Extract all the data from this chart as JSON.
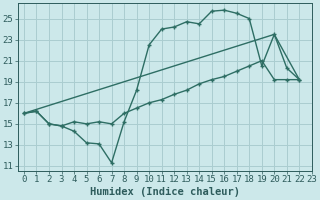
{
  "line1_x": [
    0,
    1,
    2,
    3,
    4,
    5,
    6,
    7,
    8,
    9,
    10,
    11,
    12,
    13,
    14,
    15,
    16,
    17,
    18,
    19,
    20,
    21,
    22
  ],
  "line1_y": [
    16.0,
    16.2,
    15.0,
    14.8,
    14.3,
    13.2,
    13.1,
    11.3,
    15.2,
    18.2,
    22.5,
    24.0,
    24.2,
    24.7,
    24.5,
    25.7,
    25.8,
    25.5,
    25.0,
    20.5,
    23.5,
    20.3,
    19.2
  ],
  "line2_x": [
    0,
    20,
    22
  ],
  "line2_y": [
    16.0,
    23.5,
    19.2
  ],
  "line3_x": [
    0,
    1,
    2,
    3,
    4,
    5,
    6,
    7,
    8,
    9,
    10,
    11,
    12,
    13,
    14,
    15,
    16,
    17,
    18,
    19,
    20,
    21,
    22
  ],
  "line3_y": [
    16.0,
    16.2,
    15.0,
    14.8,
    15.2,
    15.0,
    15.2,
    15.0,
    16.0,
    16.5,
    17.0,
    17.3,
    17.8,
    18.2,
    18.8,
    19.2,
    19.5,
    20.0,
    20.5,
    21.0,
    19.2,
    19.2,
    19.2
  ],
  "bg_color": "#cce8ea",
  "grid_color": "#aacdd0",
  "line_color": "#2e6e64",
  "xlabel": "Humidex (Indice chaleur)",
  "xlim": [
    -0.5,
    23.0
  ],
  "ylim": [
    10.5,
    26.5
  ],
  "yticks": [
    11,
    13,
    15,
    17,
    19,
    21,
    23,
    25
  ],
  "xticks": [
    0,
    1,
    2,
    3,
    4,
    5,
    6,
    7,
    8,
    9,
    10,
    11,
    12,
    13,
    14,
    15,
    16,
    17,
    18,
    19,
    20,
    21,
    22,
    23
  ],
  "font_color": "#2e5c5c",
  "font_size": 6.5,
  "xlabel_fontsize": 7.5
}
